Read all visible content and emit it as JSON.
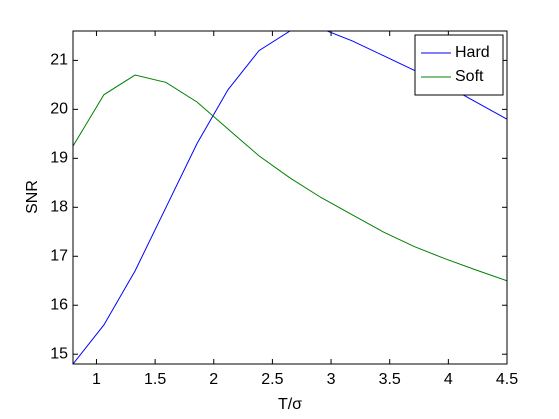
{
  "chart_data": {
    "type": "line",
    "xlabel": "T/σ",
    "ylabel": "SNR",
    "x": [
      0.8,
      1.064,
      1.329,
      1.593,
      1.857,
      2.121,
      2.386,
      2.65,
      2.914,
      3.179,
      3.443,
      3.707,
      3.971,
      4.236,
      4.5
    ],
    "series": [
      {
        "name": "Hard",
        "color": "#0000ff",
        "values": [
          14.8,
          15.6,
          16.7,
          18.0,
          19.3,
          20.4,
          21.2,
          21.6,
          21.65,
          21.4,
          21.1,
          20.8,
          20.5,
          20.15,
          19.8
        ]
      },
      {
        "name": "Soft",
        "color": "#008000",
        "values": [
          19.25,
          20.3,
          20.7,
          20.55,
          20.15,
          19.6,
          19.05,
          18.6,
          18.2,
          17.85,
          17.5,
          17.2,
          16.95,
          16.72,
          16.5
        ]
      }
    ],
    "xlim": [
      0.8,
      4.5
    ],
    "xticks": [
      1,
      1.5,
      2,
      2.5,
      3,
      3.5,
      4,
      4.5
    ],
    "ylim": [
      14.8,
      21.6
    ],
    "yticks": [
      15,
      16,
      17,
      18,
      19,
      20,
      21
    ],
    "grid": false,
    "legend": "top-right"
  }
}
